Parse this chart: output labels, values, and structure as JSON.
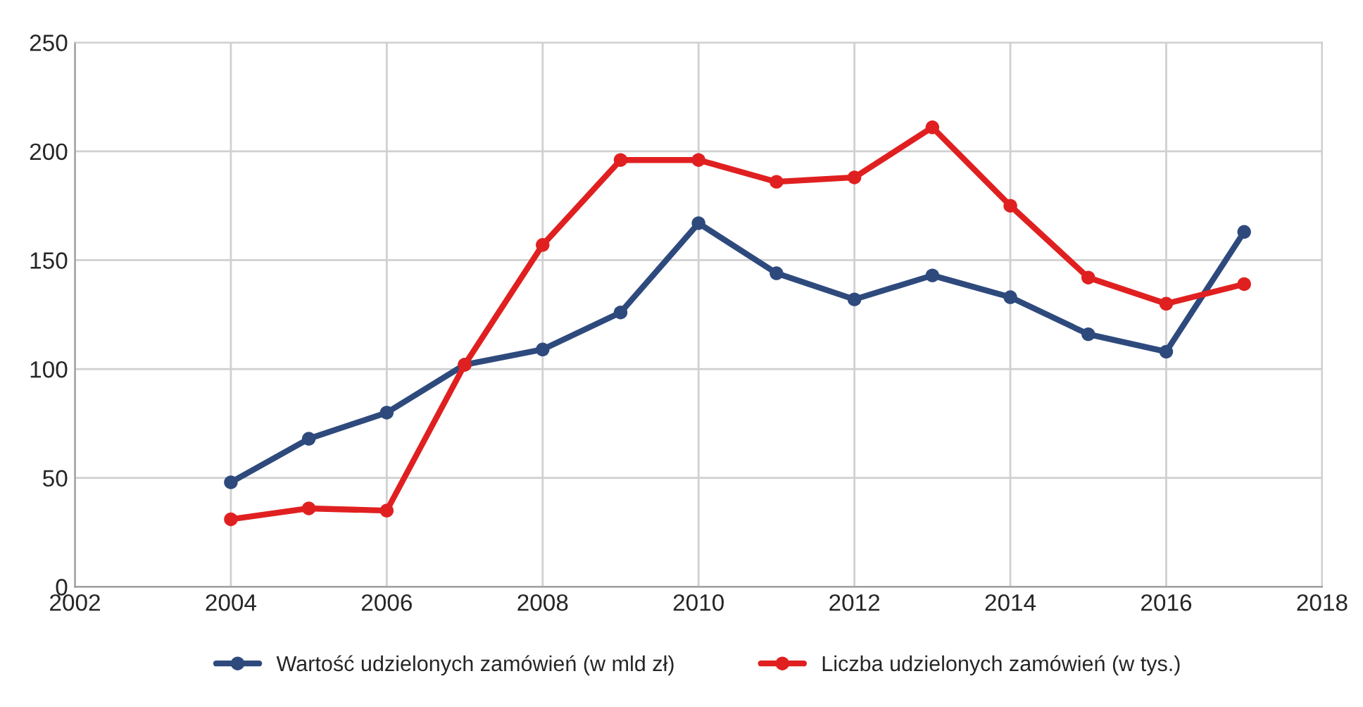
{
  "chart_data": {
    "type": "line",
    "x": [
      2004,
      2005,
      2006,
      2007,
      2008,
      2009,
      2010,
      2011,
      2012,
      2013,
      2014,
      2015,
      2016,
      2017
    ],
    "series": [
      {
        "name": "Wartość udzielonych zamówień (w mld zł)",
        "color": "#2e4a7d",
        "values": [
          48,
          68,
          80,
          102,
          109,
          126,
          167,
          144,
          132,
          143,
          133,
          116,
          108,
          163
        ]
      },
      {
        "name": "Liczba udzielonych zamówień (w tys.)",
        "color": "#e02020",
        "values": [
          31,
          36,
          35,
          102,
          157,
          196,
          196,
          186,
          188,
          211,
          175,
          142,
          130,
          139
        ]
      }
    ],
    "xlim": [
      2002,
      2018
    ],
    "xticks": [
      2002,
      2004,
      2006,
      2008,
      2010,
      2012,
      2014,
      2016,
      2018
    ],
    "ylim": [
      0,
      250
    ],
    "yticks": [
      0,
      50,
      100,
      150,
      200,
      250
    ],
    "grid": true,
    "legend": "bottom",
    "marker": "circle",
    "line_style": "solid"
  }
}
